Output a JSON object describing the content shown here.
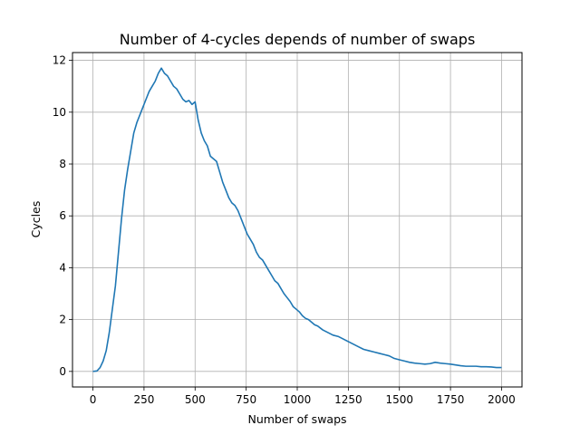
{
  "chart_data": {
    "type": "line",
    "title": "Number of 4-cycles depends of number of swaps",
    "xlabel": "Number of swaps",
    "ylabel": "Cycles",
    "xlim": [
      -100,
      2100
    ],
    "ylim": [
      -0.6,
      12.3
    ],
    "xticks": [
      0,
      250,
      500,
      750,
      1000,
      1250,
      1500,
      1750,
      2000
    ],
    "yticks": [
      0,
      2,
      4,
      6,
      8,
      10,
      12
    ],
    "grid": true,
    "legend": "none",
    "series": [
      {
        "color": "#1f77b4",
        "x": [
          0,
          20,
          35,
          50,
          65,
          80,
          95,
          110,
          125,
          140,
          155,
          170,
          185,
          200,
          215,
          230,
          245,
          260,
          275,
          290,
          305,
          320,
          335,
          350,
          365,
          380,
          395,
          410,
          425,
          440,
          455,
          470,
          485,
          500,
          515,
          530,
          545,
          560,
          575,
          590,
          605,
          620,
          635,
          650,
          665,
          680,
          695,
          710,
          725,
          740,
          755,
          770,
          785,
          800,
          815,
          830,
          845,
          860,
          875,
          890,
          905,
          920,
          935,
          950,
          965,
          980,
          995,
          1010,
          1025,
          1040,
          1055,
          1070,
          1085,
          1100,
          1125,
          1150,
          1175,
          1200,
          1225,
          1250,
          1275,
          1300,
          1325,
          1350,
          1375,
          1400,
          1425,
          1450,
          1475,
          1500,
          1525,
          1550,
          1575,
          1600,
          1625,
          1650,
          1675,
          1700,
          1725,
          1750,
          1775,
          1800,
          1825,
          1850,
          1875,
          1900,
          1925,
          1950,
          1975,
          2000
        ],
        "y": [
          0.0,
          0.02,
          0.15,
          0.4,
          0.8,
          1.5,
          2.4,
          3.3,
          4.6,
          5.9,
          7.0,
          7.8,
          8.5,
          9.2,
          9.6,
          9.9,
          10.2,
          10.5,
          10.8,
          11.0,
          11.2,
          11.5,
          11.7,
          11.5,
          11.4,
          11.2,
          11.0,
          10.9,
          10.7,
          10.5,
          10.4,
          10.45,
          10.3,
          10.4,
          9.7,
          9.2,
          8.9,
          8.7,
          8.3,
          8.2,
          8.1,
          7.7,
          7.3,
          7.0,
          6.7,
          6.5,
          6.4,
          6.2,
          5.9,
          5.6,
          5.3,
          5.1,
          4.9,
          4.6,
          4.4,
          4.3,
          4.1,
          3.9,
          3.7,
          3.5,
          3.4,
          3.2,
          3.0,
          2.85,
          2.7,
          2.5,
          2.4,
          2.3,
          2.15,
          2.05,
          2.0,
          1.9,
          1.8,
          1.75,
          1.6,
          1.5,
          1.4,
          1.35,
          1.25,
          1.15,
          1.05,
          0.95,
          0.85,
          0.8,
          0.75,
          0.7,
          0.65,
          0.6,
          0.5,
          0.45,
          0.4,
          0.35,
          0.32,
          0.3,
          0.28,
          0.3,
          0.35,
          0.32,
          0.3,
          0.28,
          0.25,
          0.22,
          0.2,
          0.2,
          0.2,
          0.18,
          0.18,
          0.17,
          0.15,
          0.15
        ]
      }
    ]
  }
}
